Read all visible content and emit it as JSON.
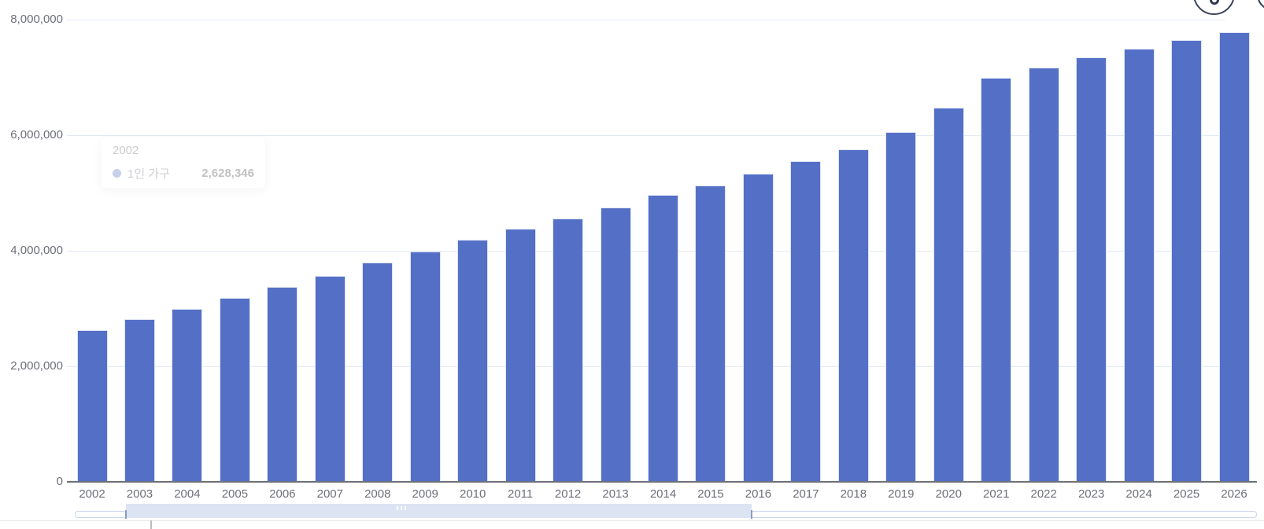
{
  "chart_data": {
    "type": "bar",
    "title": "",
    "series_name": "1인 가구",
    "categories": [
      "2002",
      "2003",
      "2004",
      "2005",
      "2006",
      "2007",
      "2008",
      "2009",
      "2010",
      "2011",
      "2012",
      "2013",
      "2014",
      "2015",
      "2016",
      "2017",
      "2018",
      "2019",
      "2020",
      "2021",
      "2022",
      "2023",
      "2024",
      "2025",
      "2026"
    ],
    "values": [
      2628346,
      2810000,
      3000000,
      3190000,
      3380000,
      3570000,
      3790000,
      3980000,
      4190000,
      4380000,
      4560000,
      4750000,
      4960000,
      5130000,
      5330000,
      5550000,
      5760000,
      6050000,
      6480000,
      6990000,
      7170000,
      7350000,
      7500000,
      7650000,
      7780000
    ],
    "xlabel": "",
    "ylabel": "",
    "ylim": [
      0,
      8000000
    ],
    "ytick_interval": 2000000,
    "ytick_labels": [
      "0",
      "2,000,000",
      "4,000,000",
      "6,000,000",
      "8,000,000"
    ],
    "grid": true,
    "legend": false,
    "bar_color": "#5470c6"
  },
  "tooltip": {
    "title": "2002",
    "series": "1인 가구",
    "value": "2,628,346",
    "marker_color": "#5470c6"
  },
  "colors": {
    "bar": "#5470c6",
    "axis_line": "#6E7079",
    "axis_label": "#6E7079",
    "gridline": "#e3e9f3",
    "datazoom_fill": "#dce4f3",
    "datazoom_border": "#ccd6eb"
  },
  "icons": {
    "toolbox_button": "circle-button",
    "grip": "drag-grip-dots"
  }
}
